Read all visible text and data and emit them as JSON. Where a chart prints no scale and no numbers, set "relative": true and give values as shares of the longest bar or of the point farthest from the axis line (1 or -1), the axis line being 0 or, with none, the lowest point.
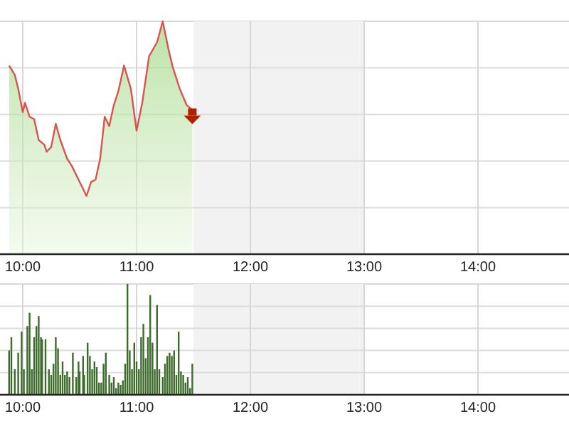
{
  "chart_data": [
    {
      "type": "area",
      "relative": true,
      "grid": true,
      "xlim": [
        9.8,
        14.8
      ],
      "xticks": [
        {
          "value": 10,
          "label": "10:00"
        },
        {
          "value": 11,
          "label": "11:00"
        },
        {
          "value": 12,
          "label": "12:00"
        },
        {
          "value": 13,
          "label": "13:00"
        },
        {
          "value": 14,
          "label": "14:00"
        }
      ],
      "bands": [
        {
          "axis": "x",
          "from": 11.5,
          "to": 13,
          "color": "#f2f2f2"
        }
      ],
      "series": [
        {
          "color": "#d9534f",
          "x": [
            9.88,
            9.93,
            9.96,
            10.0,
            10.02,
            10.06,
            10.1,
            10.14,
            10.19,
            10.21,
            10.25,
            10.29,
            10.33,
            10.39,
            10.43,
            10.49,
            10.56,
            10.6,
            10.64,
            10.68,
            10.72,
            10.76,
            10.8,
            10.84,
            10.89,
            10.95,
            11.0,
            11.05,
            11.11,
            11.18,
            11.23,
            11.28,
            11.32,
            11.38,
            11.44,
            11.49
          ],
          "values": [
            0.81,
            0.77,
            0.71,
            0.61,
            0.65,
            0.59,
            0.58,
            0.49,
            0.47,
            0.44,
            0.46,
            0.56,
            0.49,
            0.41,
            0.38,
            0.32,
            0.25,
            0.31,
            0.32,
            0.41,
            0.59,
            0.55,
            0.64,
            0.7,
            0.81,
            0.71,
            0.53,
            0.65,
            0.85,
            0.91,
            1.0,
            0.88,
            0.8,
            0.71,
            0.64,
            0.62
          ]
        }
      ]
    },
    {
      "type": "bar",
      "relative": true,
      "grid": true,
      "xlim": [
        9.8,
        14.8
      ],
      "xticks": [
        {
          "value": 10,
          "label": "10:00"
        },
        {
          "value": 11,
          "label": "11:00"
        },
        {
          "value": 12,
          "label": "12:00"
        },
        {
          "value": 13,
          "label": "13:00"
        },
        {
          "value": 14,
          "label": "14:00"
        }
      ],
      "bands": [
        {
          "axis": "x",
          "from": 11.5,
          "to": 13,
          "color": "#f2f2f2"
        }
      ],
      "series": [
        {
          "color": "#3d6b2c",
          "x": [
            9.88,
            9.9,
            9.93,
            9.96,
            9.99,
            10.01,
            10.04,
            10.06,
            10.08,
            10.1,
            10.12,
            10.14,
            10.16,
            10.17,
            10.2,
            10.23,
            10.25,
            10.27,
            10.29,
            10.31,
            10.33,
            10.35,
            10.37,
            10.39,
            10.41,
            10.44,
            10.47,
            10.49,
            10.5,
            10.53,
            10.54,
            10.57,
            10.59,
            10.61,
            10.63,
            10.65,
            10.67,
            10.69,
            10.71,
            10.73,
            10.76,
            10.78,
            10.8,
            10.82,
            10.84,
            10.86,
            10.88,
            10.9,
            10.92,
            10.94,
            10.96,
            10.98,
            11.0,
            11.02,
            11.04,
            11.06,
            11.08,
            11.1,
            11.12,
            11.14,
            11.16,
            11.18,
            11.2,
            11.23,
            11.25,
            11.27,
            11.29,
            11.31,
            11.33,
            11.35,
            11.37,
            11.39,
            11.41,
            11.43,
            11.45,
            11.47,
            11.49
          ],
          "values": [
            0.4,
            0.52,
            0.23,
            0.38,
            0.57,
            0.23,
            0.62,
            0.74,
            0.23,
            0.52,
            0.62,
            0.71,
            0.52,
            0.5,
            0.5,
            0.23,
            0.18,
            0.28,
            0.52,
            0.42,
            0.18,
            0.3,
            0.18,
            0.21,
            0.16,
            0.38,
            0.16,
            0.3,
            0.21,
            0.35,
            0.18,
            0.47,
            0.35,
            0.23,
            0.3,
            0.25,
            0.11,
            0.11,
            0.28,
            0.38,
            0.18,
            0.11,
            0.16,
            0.06,
            0.11,
            0.09,
            0.13,
            0.28,
            1.0,
            0.4,
            0.23,
            0.47,
            0.3,
            0.23,
            0.52,
            0.64,
            0.33,
            0.52,
            0.9,
            0.47,
            0.23,
            0.81,
            0.23,
            0.16,
            0.28,
            0.35,
            0.38,
            0.35,
            0.4,
            0.18,
            0.57,
            0.21,
            0.18,
            0.11,
            0.16,
            0.06,
            0.28
          ]
        }
      ]
    }
  ]
}
